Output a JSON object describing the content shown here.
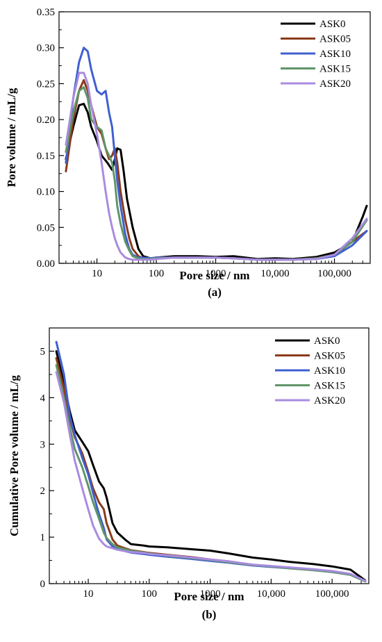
{
  "chart_data": [
    {
      "type": "line",
      "panel_label": "(a)",
      "xlabel": "Pore size / nm",
      "ylabel": "Pore volume / mL/g",
      "x_scale": "log",
      "xlim": [
        2.3,
        400000
      ],
      "ylim": [
        0,
        0.35
      ],
      "x_ticks": [
        10,
        100,
        1000,
        10000,
        100000
      ],
      "x_tick_labels": [
        "10",
        "100",
        "1000",
        "10,000",
        "100,000"
      ],
      "y_ticks": [
        0,
        0.05,
        0.1,
        0.15,
        0.2,
        0.25,
        0.3,
        0.35
      ],
      "y_tick_labels": [
        "0.00",
        "0.05",
        "0.10",
        "0.15",
        "0.20",
        "0.25",
        "0.30",
        "0.35"
      ],
      "grid": false,
      "legend_position": "top-right",
      "series": [
        {
          "name": "ASK0",
          "color": "#000000",
          "x": [
            3,
            4,
            5,
            6,
            7,
            8,
            10,
            12,
            15,
            18,
            20,
            22,
            25,
            28,
            32,
            40,
            50,
            60,
            80,
            100,
            200,
            500,
            1000,
            2000,
            5000,
            10000,
            20000,
            50000,
            100000,
            200000,
            300000,
            350000
          ],
          "y": [
            0.145,
            0.19,
            0.22,
            0.222,
            0.21,
            0.19,
            0.17,
            0.15,
            0.14,
            0.13,
            0.145,
            0.16,
            0.158,
            0.13,
            0.09,
            0.05,
            0.02,
            0.01,
            0.007,
            0.008,
            0.01,
            0.01,
            0.009,
            0.01,
            0.006,
            0.007,
            0.006,
            0.009,
            0.015,
            0.03,
            0.065,
            0.08
          ]
        },
        {
          "name": "ASK05",
          "color": "#8B3A1A",
          "x": [
            3,
            4,
            5,
            6,
            7,
            8,
            10,
            12,
            14,
            16,
            18,
            20,
            22,
            25,
            30,
            35,
            40,
            50,
            60,
            80,
            100,
            200,
            500,
            1000,
            2000,
            5000,
            10000,
            20000,
            50000,
            100000,
            200000,
            350000
          ],
          "y": [
            0.128,
            0.2,
            0.24,
            0.255,
            0.24,
            0.22,
            0.19,
            0.18,
            0.16,
            0.145,
            0.15,
            0.16,
            0.14,
            0.1,
            0.06,
            0.035,
            0.02,
            0.01,
            0.007,
            0.007,
            0.008,
            0.008,
            0.008,
            0.008,
            0.007,
            0.005,
            0.005,
            0.005,
            0.007,
            0.012,
            0.03,
            0.045
          ]
        },
        {
          "name": "ASK10",
          "color": "#3F5FD0",
          "x": [
            3,
            4,
            5,
            6,
            7,
            8,
            10,
            12,
            14,
            16,
            18,
            20,
            22,
            25,
            30,
            35,
            40,
            50,
            60,
            80,
            100,
            200,
            500,
            1000,
            2000,
            5000,
            10000,
            20000,
            50000,
            100000,
            200000,
            350000
          ],
          "y": [
            0.14,
            0.23,
            0.28,
            0.3,
            0.295,
            0.27,
            0.24,
            0.235,
            0.24,
            0.21,
            0.19,
            0.15,
            0.115,
            0.08,
            0.04,
            0.02,
            0.012,
            0.008,
            0.008,
            0.007,
            0.008,
            0.008,
            0.008,
            0.008,
            0.007,
            0.005,
            0.005,
            0.005,
            0.006,
            0.01,
            0.025,
            0.045
          ]
        },
        {
          "name": "ASK15",
          "color": "#5F9568",
          "x": [
            3,
            4,
            5,
            6,
            7,
            8,
            10,
            12,
            14,
            16,
            18,
            20,
            22,
            25,
            30,
            35,
            40,
            50,
            60,
            80,
            100,
            200,
            500,
            1000,
            2000,
            5000,
            10000,
            20000,
            50000,
            100000,
            200000,
            350000
          ],
          "y": [
            0.155,
            0.21,
            0.24,
            0.245,
            0.23,
            0.2,
            0.19,
            0.185,
            0.16,
            0.15,
            0.14,
            0.115,
            0.08,
            0.055,
            0.03,
            0.018,
            0.01,
            0.007,
            0.006,
            0.006,
            0.007,
            0.008,
            0.008,
            0.008,
            0.007,
            0.005,
            0.005,
            0.005,
            0.007,
            0.012,
            0.03,
            0.06
          ]
        },
        {
          "name": "ASK20",
          "color": "#A98BE0",
          "x": [
            3,
            4,
            5,
            6,
            7,
            8,
            10,
            12,
            14,
            16,
            18,
            20,
            22,
            25,
            30,
            35,
            40,
            50,
            60,
            80,
            100,
            200,
            500,
            1000,
            2000,
            5000,
            10000,
            20000,
            50000,
            100000,
            200000,
            350000
          ],
          "y": [
            0.165,
            0.23,
            0.265,
            0.265,
            0.25,
            0.22,
            0.18,
            0.14,
            0.1,
            0.07,
            0.05,
            0.035,
            0.025,
            0.015,
            0.008,
            0.006,
            0.005,
            0.005,
            0.005,
            0.005,
            0.006,
            0.008,
            0.008,
            0.008,
            0.007,
            0.005,
            0.005,
            0.005,
            0.006,
            0.012,
            0.035,
            0.062
          ]
        }
      ]
    },
    {
      "type": "line",
      "panel_label": "(b)",
      "xlabel": "Pore size / nm",
      "ylabel": "Cumulative Pore volume / mL/g",
      "x_scale": "log",
      "xlim": [
        2.3,
        400000
      ],
      "ylim": [
        0,
        5.5
      ],
      "x_ticks": [
        10,
        100,
        1000,
        10000,
        100000
      ],
      "x_tick_labels": [
        "10",
        "100",
        "1000",
        "10,000",
        "100,000"
      ],
      "y_ticks": [
        0,
        1,
        2,
        3,
        4,
        5
      ],
      "y_tick_labels": [
        "0",
        "1",
        "2",
        "3",
        "4",
        "5"
      ],
      "grid": false,
      "legend_position": "top-right",
      "series": [
        {
          "name": "ASK0",
          "color": "#000000",
          "x": [
            3,
            4,
            5,
            6,
            8,
            10,
            12,
            15,
            18,
            20,
            25,
            30,
            40,
            50,
            80,
            100,
            200,
            500,
            1000,
            2000,
            5000,
            10000,
            20000,
            50000,
            100000,
            200000,
            350000
          ],
          "y": [
            5.0,
            4.3,
            3.7,
            3.3,
            3.05,
            2.85,
            2.55,
            2.2,
            2.05,
            1.85,
            1.3,
            1.1,
            0.95,
            0.85,
            0.82,
            0.8,
            0.78,
            0.74,
            0.71,
            0.65,
            0.56,
            0.52,
            0.47,
            0.42,
            0.37,
            0.3,
            0.07
          ]
        },
        {
          "name": "ASK05",
          "color": "#8B3A1A",
          "x": [
            3,
            4,
            5,
            6,
            8,
            10,
            12,
            15,
            18,
            20,
            25,
            30,
            40,
            50,
            80,
            100,
            200,
            500,
            1000,
            2000,
            5000,
            10000,
            20000,
            50000,
            100000,
            200000,
            350000
          ],
          "y": [
            4.85,
            4.2,
            3.55,
            3.15,
            2.8,
            2.4,
            2.05,
            1.75,
            1.6,
            1.3,
            0.95,
            0.82,
            0.76,
            0.72,
            0.68,
            0.66,
            0.62,
            0.57,
            0.52,
            0.48,
            0.4,
            0.37,
            0.34,
            0.3,
            0.26,
            0.2,
            0.05
          ]
        },
        {
          "name": "ASK10",
          "color": "#3F5FD0",
          "x": [
            3,
            4,
            5,
            6,
            8,
            10,
            12,
            15,
            18,
            20,
            25,
            30,
            40,
            50,
            80,
            100,
            200,
            500,
            1000,
            2000,
            5000,
            10000,
            20000,
            50000,
            100000,
            200000,
            350000
          ],
          "y": [
            5.2,
            4.5,
            3.6,
            3.2,
            2.7,
            2.35,
            1.95,
            1.5,
            1.2,
            0.95,
            0.8,
            0.74,
            0.7,
            0.67,
            0.64,
            0.62,
            0.58,
            0.53,
            0.49,
            0.45,
            0.39,
            0.36,
            0.33,
            0.29,
            0.25,
            0.19,
            0.05
          ]
        },
        {
          "name": "ASK15",
          "color": "#5F9568",
          "x": [
            3,
            4,
            5,
            6,
            8,
            10,
            12,
            15,
            18,
            20,
            25,
            30,
            40,
            50,
            80,
            100,
            200,
            500,
            1000,
            2000,
            5000,
            10000,
            20000,
            50000,
            100000,
            200000,
            350000
          ],
          "y": [
            4.7,
            4.0,
            3.35,
            2.9,
            2.5,
            2.1,
            1.75,
            1.4,
            1.1,
            0.98,
            0.85,
            0.78,
            0.74,
            0.71,
            0.67,
            0.65,
            0.6,
            0.55,
            0.51,
            0.46,
            0.4,
            0.37,
            0.33,
            0.29,
            0.25,
            0.19,
            0.05
          ]
        },
        {
          "name": "ASK20",
          "color": "#A98BE0",
          "x": [
            3,
            4,
            5,
            6,
            8,
            10,
            12,
            15,
            18,
            20,
            25,
            30,
            40,
            50,
            80,
            100,
            200,
            500,
            1000,
            2000,
            5000,
            10000,
            20000,
            50000,
            100000,
            200000,
            350000
          ],
          "y": [
            4.55,
            3.9,
            3.2,
            2.65,
            2.05,
            1.6,
            1.25,
            0.97,
            0.85,
            0.8,
            0.76,
            0.73,
            0.7,
            0.68,
            0.66,
            0.64,
            0.61,
            0.56,
            0.52,
            0.48,
            0.41,
            0.38,
            0.35,
            0.31,
            0.27,
            0.21,
            0.06
          ]
        }
      ]
    }
  ]
}
